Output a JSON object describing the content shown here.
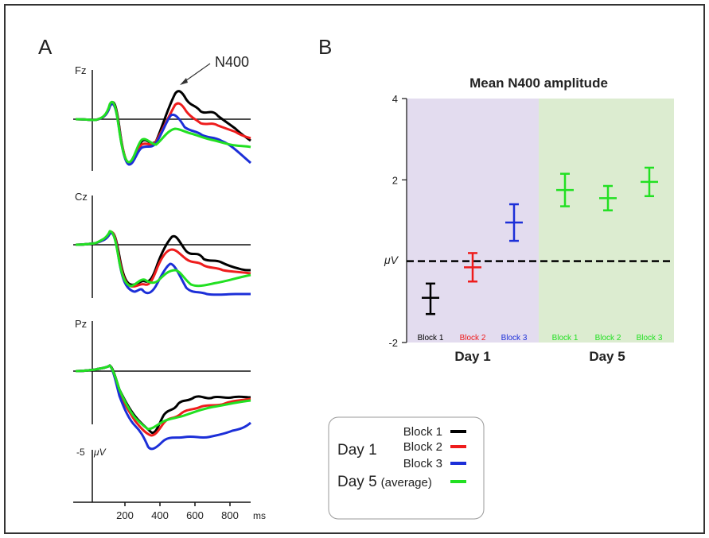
{
  "panels": {
    "a_label": "A",
    "b_label": "B"
  },
  "colors": {
    "black": "#000000",
    "red": "#ee1c1c",
    "blue": "#1c2fd8",
    "green": "#22e022",
    "day1_bg": "#e3dcef",
    "day5_bg": "#dcecd0"
  },
  "erp": {
    "annotation": "N400",
    "channels": [
      "Fz",
      "Cz",
      "Pz"
    ],
    "scale_label": "-5",
    "scale_unit": "μV",
    "x_ticks": [
      200,
      400,
      600,
      800
    ],
    "x_unit": "ms"
  },
  "chart_data": {
    "type": "scatter",
    "title": "Mean N400 amplitude",
    "ylabel": "μV",
    "ylim": [
      -2,
      4
    ],
    "yticks": [
      -2,
      2,
      4
    ],
    "reference_line": 0,
    "groups": [
      {
        "label": "Day 1",
        "points": [
          {
            "label": "Block 1",
            "color": "#000000",
            "mean": -0.9,
            "lower": -1.3,
            "upper": -0.55
          },
          {
            "label": "Block 2",
            "color": "#ee1c1c",
            "mean": -0.15,
            "lower": -0.5,
            "upper": 0.2
          },
          {
            "label": "Block 3",
            "color": "#1c2fd8",
            "mean": 0.95,
            "lower": 0.5,
            "upper": 1.4
          }
        ]
      },
      {
        "label": "Day 5",
        "points": [
          {
            "label": "Block 1",
            "color": "#22e022",
            "mean": 1.75,
            "lower": 1.35,
            "upper": 2.15
          },
          {
            "label": "Block 2",
            "color": "#22e022",
            "mean": 1.55,
            "lower": 1.25,
            "upper": 1.85
          },
          {
            "label": "Block 3",
            "color": "#22e022",
            "mean": 1.95,
            "lower": 1.6,
            "upper": 2.3
          }
        ]
      }
    ]
  },
  "legend": {
    "day1": "Day 1",
    "day5": "Day 5",
    "day5_note": "(average)",
    "block1": "Block 1",
    "block2": "Block 2",
    "block3": "Block 3"
  }
}
